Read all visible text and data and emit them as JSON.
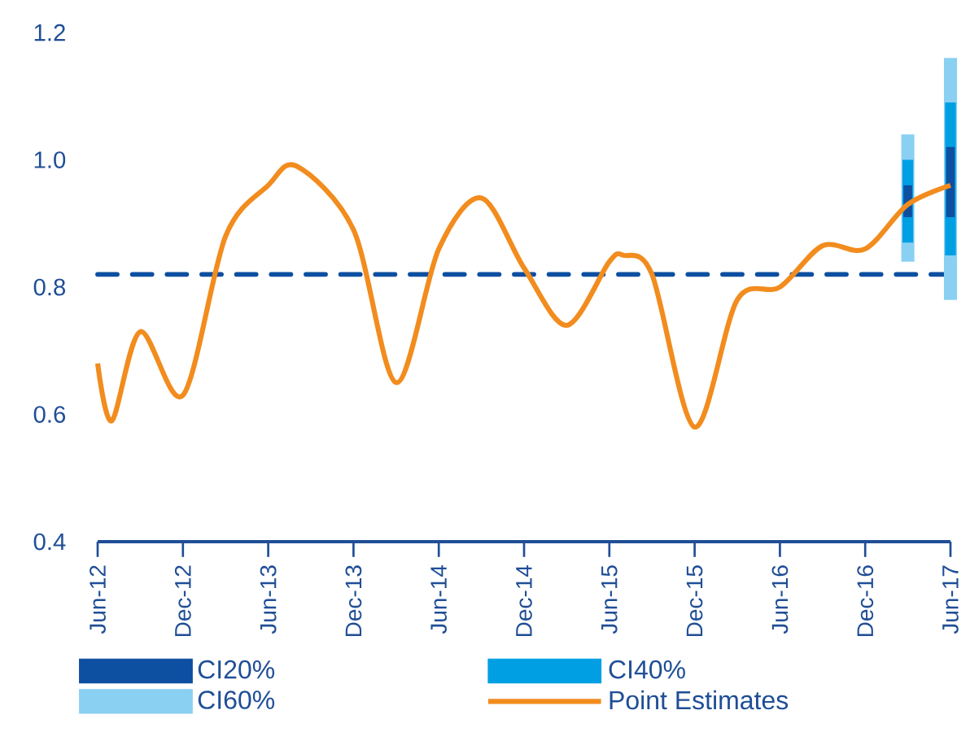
{
  "chart_data": {
    "type": "line",
    "xlim": [
      "2012-06",
      "2017-06"
    ],
    "xticks": [
      {
        "value": "2012-06",
        "label": "Jun-12"
      },
      {
        "value": "2012-12",
        "label": "Dec-12"
      },
      {
        "value": "2013-06",
        "label": "Jun-13"
      },
      {
        "value": "2013-12",
        "label": "Dec-13"
      },
      {
        "value": "2014-06",
        "label": "Jun-14"
      },
      {
        "value": "2014-12",
        "label": "Dec-14"
      },
      {
        "value": "2015-06",
        "label": "Jun-15"
      },
      {
        "value": "2015-12",
        "label": "Dec-15"
      },
      {
        "value": "2016-06",
        "label": "Jun-16"
      },
      {
        "value": "2016-12",
        "label": "Dec-16"
      },
      {
        "value": "2017-06",
        "label": "Jun-17"
      }
    ],
    "ylim": [
      0.4,
      1.2
    ],
    "yticks": [
      0.4,
      0.6,
      0.8,
      {
        "value": 1.0,
        "label": "1.0"
      },
      1.2
    ],
    "grid": false,
    "legend": "bottom",
    "series": [
      {
        "name": "CI20%",
        "type": "bar",
        "color": "#0d4fa0",
        "x": [
          "2017-03",
          "2017-06"
        ],
        "base": [
          0.91,
          0.91
        ],
        "values": [
          0.05,
          0.11
        ]
      },
      {
        "name": "CI40%",
        "type": "bar",
        "color": "#009fe3",
        "x": [
          "2017-03",
          "2017-06"
        ],
        "base": [
          0.87,
          0.85
        ],
        "values": [
          0.13,
          0.24
        ]
      },
      {
        "name": "CI60%",
        "type": "bar",
        "color": "#8ad0f2",
        "x": [
          "2017-03",
          "2017-06"
        ],
        "base": [
          0.84,
          0.78
        ],
        "values": [
          0.2,
          0.38
        ]
      },
      {
        "name": "Point Estimates",
        "color": "#f28c1e",
        "x": [
          "2012-06",
          "2012-07",
          "2012-09",
          "2012-12",
          "2013-03",
          "2013-06",
          "2013-08",
          "2013-12",
          "2014-03",
          "2014-06",
          "2014-09",
          "2014-12",
          "2015-03",
          "2015-06",
          "2015-07",
          "2015-09",
          "2015-12",
          "2016-03",
          "2016-06",
          "2016-09",
          "2016-12",
          "2017-03",
          "2017-06"
        ],
        "values": [
          0.68,
          0.59,
          0.73,
          0.63,
          0.88,
          0.96,
          0.99,
          0.89,
          0.65,
          0.86,
          0.94,
          0.83,
          0.74,
          0.84,
          0.85,
          0.82,
          0.58,
          0.78,
          0.8,
          0.865,
          0.86,
          0.93,
          0.96
        ]
      }
    ],
    "ref_lines": [
      {
        "axis": "y",
        "value": 0.82,
        "color": "#0d4fa0",
        "line_style": "dashed"
      }
    ]
  }
}
